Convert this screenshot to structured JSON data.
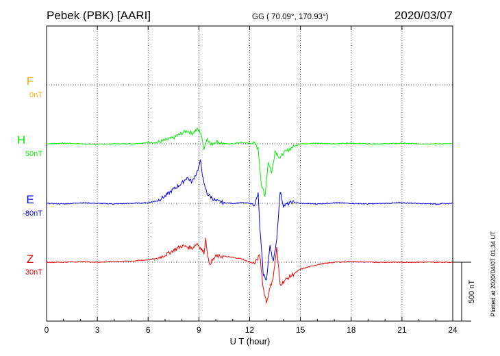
{
  "header": {
    "station": "Pebek (PBK)  [AARI]",
    "coords": "GG ( 70.09°, 170.93°)",
    "date": "2020/03/07"
  },
  "footer": {
    "plotted": "Plotted at 2020/04/07 01:34 UT"
  },
  "chart_data": {
    "type": "line",
    "xlabel": "U T (hour)",
    "xlim": [
      0,
      24
    ],
    "x_ticks": [
      "0",
      "3",
      "6",
      "9",
      "12",
      "15",
      "18",
      "21",
      "24"
    ],
    "grid": true,
    "scale_bar": {
      "label": "500 nT",
      "value_nT": 500
    },
    "colors": {
      "F": "#ffa500",
      "H": "#00ee00",
      "E": "#0000ee",
      "Z": "#ee0000"
    },
    "series": [
      {
        "name": "F",
        "baseline": "0nT",
        "points": []
      },
      {
        "name": "H",
        "baseline": "50nT",
        "points": [
          [
            0,
            0
          ],
          [
            1,
            5
          ],
          [
            2,
            0
          ],
          [
            3,
            -5
          ],
          [
            4,
            0
          ],
          [
            5,
            0
          ],
          [
            6,
            10
          ],
          [
            6.5,
            10
          ],
          [
            7,
            30
          ],
          [
            7.5,
            50
          ],
          [
            8,
            90
          ],
          [
            8.3,
            110
          ],
          [
            8.6,
            90
          ],
          [
            8.9,
            120
          ],
          [
            9.1,
            100
          ],
          [
            9.3,
            -40
          ],
          [
            9.5,
            50
          ],
          [
            9.7,
            -10
          ],
          [
            10,
            20
          ],
          [
            10.5,
            0
          ],
          [
            11,
            0
          ],
          [
            11.5,
            10
          ],
          [
            12,
            5
          ],
          [
            12.3,
            0
          ],
          [
            12.5,
            -40
          ],
          [
            12.7,
            -350
          ],
          [
            12.9,
            -450
          ],
          [
            13.1,
            -150
          ],
          [
            13.3,
            -250
          ],
          [
            13.5,
            -60
          ],
          [
            13.8,
            -120
          ],
          [
            14,
            -80
          ],
          [
            14.5,
            -30
          ],
          [
            15,
            0
          ],
          [
            16,
            5
          ],
          [
            17,
            0
          ],
          [
            18,
            5
          ],
          [
            19,
            0
          ],
          [
            20,
            0
          ],
          [
            21,
            5
          ],
          [
            22,
            0
          ],
          [
            23,
            0
          ],
          [
            24,
            0
          ]
        ]
      },
      {
        "name": "E",
        "baseline": "-80nT",
        "points": [
          [
            0,
            0
          ],
          [
            1,
            -5
          ],
          [
            2,
            5
          ],
          [
            3,
            0
          ],
          [
            4,
            -5
          ],
          [
            5,
            0
          ],
          [
            6,
            5
          ],
          [
            6.5,
            20
          ],
          [
            7,
            60
          ],
          [
            7.5,
            120
          ],
          [
            8,
            170
          ],
          [
            8.3,
            220
          ],
          [
            8.6,
            180
          ],
          [
            8.9,
            270
          ],
          [
            9.1,
            360
          ],
          [
            9.3,
            160
          ],
          [
            9.5,
            80
          ],
          [
            10,
            20
          ],
          [
            10.5,
            5
          ],
          [
            11,
            0
          ],
          [
            11.5,
            5
          ],
          [
            12,
            0
          ],
          [
            12.3,
            -10
          ],
          [
            12.5,
            80
          ],
          [
            12.6,
            -200
          ],
          [
            12.8,
            -600
          ],
          [
            13,
            -650
          ],
          [
            13.2,
            -350
          ],
          [
            13.4,
            -500
          ],
          [
            13.6,
            -300
          ],
          [
            13.8,
            100
          ],
          [
            14,
            -20
          ],
          [
            14.5,
            10
          ],
          [
            15,
            0
          ],
          [
            16,
            -5
          ],
          [
            17,
            5
          ],
          [
            18,
            0
          ],
          [
            19,
            -5
          ],
          [
            20,
            0
          ],
          [
            21,
            5
          ],
          [
            22,
            0
          ],
          [
            23,
            -5
          ],
          [
            24,
            0
          ]
        ]
      },
      {
        "name": "Z",
        "baseline": "30nT",
        "points": [
          [
            0,
            0
          ],
          [
            1,
            0
          ],
          [
            2,
            5
          ],
          [
            3,
            0
          ],
          [
            4,
            5
          ],
          [
            5,
            10
          ],
          [
            6,
            20
          ],
          [
            6.5,
            30
          ],
          [
            7,
            60
          ],
          [
            7.5,
            100
          ],
          [
            8,
            140
          ],
          [
            8.3,
            130
          ],
          [
            8.6,
            120
          ],
          [
            8.9,
            160
          ],
          [
            9.1,
            120
          ],
          [
            9.3,
            80
          ],
          [
            9.4,
            200
          ],
          [
            9.6,
            -20
          ],
          [
            10,
            50
          ],
          [
            10.5,
            50
          ],
          [
            11,
            40
          ],
          [
            11.5,
            30
          ],
          [
            12,
            0
          ],
          [
            12.3,
            -10
          ],
          [
            12.6,
            60
          ],
          [
            12.8,
            -220
          ],
          [
            13,
            -340
          ],
          [
            13.2,
            -220
          ],
          [
            13.4,
            -120
          ],
          [
            13.6,
            120
          ],
          [
            13.8,
            -190
          ],
          [
            14.2,
            -140
          ],
          [
            15,
            -60
          ],
          [
            16,
            -20
          ],
          [
            17,
            0
          ],
          [
            18,
            5
          ],
          [
            19,
            0
          ],
          [
            20,
            0
          ],
          [
            21,
            0
          ],
          [
            22,
            0
          ],
          [
            23,
            0
          ],
          [
            24,
            0
          ]
        ]
      }
    ]
  }
}
